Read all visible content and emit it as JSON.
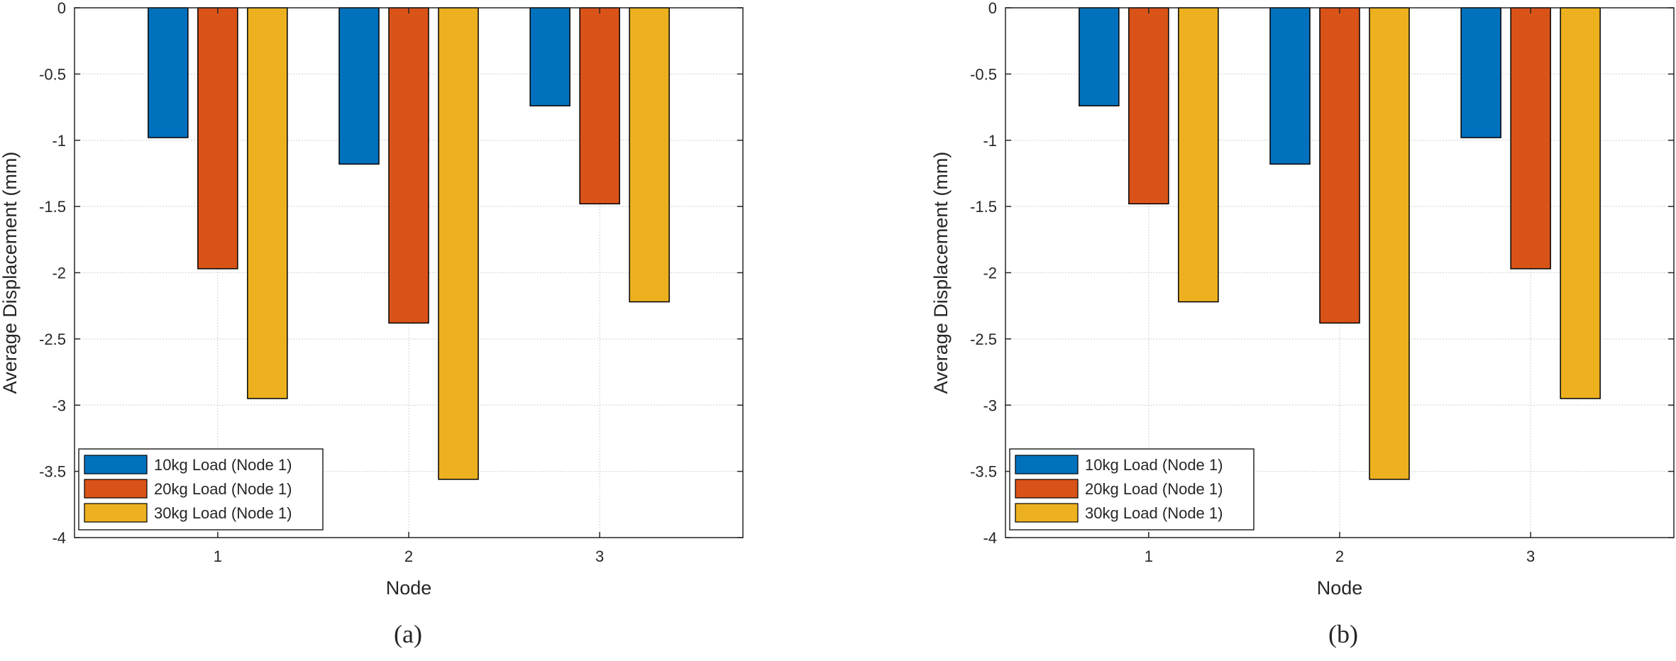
{
  "chart_data": [
    {
      "type": "bar",
      "caption": "(a)",
      "categories": [
        "1",
        "2",
        "3"
      ],
      "xlabel": "Node",
      "ylabel": "Average Displacement (mm)",
      "ylim": [
        -4,
        0
      ],
      "yticks": [
        "0",
        "-0.5",
        "-1",
        "-1.5",
        "-2",
        "-2.5",
        "-3",
        "-3.5",
        "-4"
      ],
      "grid": true,
      "legend_position": "bottom-left",
      "series": [
        {
          "name": "10kg Load (Node 1)",
          "color": "#0072BD",
          "values": [
            -0.98,
            -1.18,
            -0.74
          ]
        },
        {
          "name": "20kg Load (Node 1)",
          "color": "#D95319",
          "values": [
            -1.97,
            -2.38,
            -1.48
          ]
        },
        {
          "name": "30kg Load (Node 1)",
          "color": "#EDB120",
          "values": [
            -2.95,
            -3.56,
            -2.22
          ]
        }
      ]
    },
    {
      "type": "bar",
      "caption": "(b)",
      "categories": [
        "1",
        "2",
        "3"
      ],
      "xlabel": "Node",
      "ylabel": "Average Displacement (mm)",
      "ylim": [
        -4,
        0
      ],
      "yticks": [
        "0",
        "-0.5",
        "-1",
        "-1.5",
        "-2",
        "-2.5",
        "-3",
        "-3.5",
        "-4"
      ],
      "grid": true,
      "legend_position": "bottom-left",
      "series": [
        {
          "name": "10kg Load (Node 1)",
          "color": "#0072BD",
          "values": [
            -0.74,
            -1.18,
            -0.98
          ]
        },
        {
          "name": "20kg Load (Node 1)",
          "color": "#D95319",
          "values": [
            -1.48,
            -2.38,
            -1.97
          ]
        },
        {
          "name": "30kg Load (Node 1)",
          "color": "#EDB120",
          "values": [
            -2.22,
            -3.56,
            -2.95
          ]
        }
      ]
    }
  ]
}
